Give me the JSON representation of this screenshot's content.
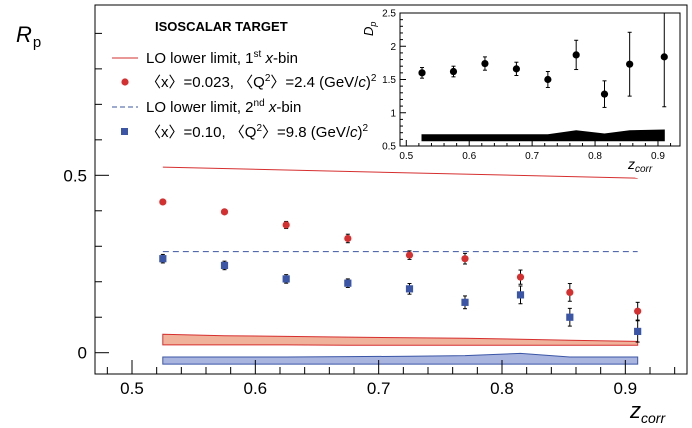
{
  "colors": {
    "red": "#d62f2f",
    "red_band": "#f0b29a",
    "blue": "#3b56a6",
    "blue_band": "#a9b4df",
    "black": "#000000"
  },
  "labels": {
    "y_title_main": "R",
    "y_title_sub": "p",
    "x_title_main": "z",
    "x_title_sub": "corr",
    "target": "ISOSCALAR TARGET",
    "leg1_pre": "LO lower limit, 1",
    "leg1_sup": "st",
    "leg1_it": " x",
    "leg1_post": "-bin",
    "leg2_a": "〈x〉=0.023, 〈Q",
    "leg2_sup1": "2",
    "leg2_b": "〉=2.4 (GeV/",
    "leg2_c": "c",
    "leg2_d": ")",
    "leg2_sup2": "2",
    "leg3_pre": "LO lower limit, 2",
    "leg3_sup": "nd",
    "leg3_it": " x",
    "leg3_post": "-bin",
    "leg4_a": "〈x〉=0.10, 〈Q",
    "leg4_sup1": "2",
    "leg4_b": "〉=9.8 (GeV/",
    "leg4_c": "c",
    "leg4_d": ")",
    "leg4_sup2": "2",
    "inset_y_main": "D",
    "inset_y_sub": "p",
    "inset_x_main": "z",
    "inset_x_sub": "corr"
  },
  "chart_data": [
    {
      "type": "scatter",
      "xlim": [
        0.47,
        0.95
      ],
      "ylim": [
        -0.06,
        0.98
      ],
      "xticks": [
        "0.5",
        "0.6",
        "0.7",
        "0.8",
        "0.9"
      ],
      "yticks": [
        "0",
        "0.5"
      ],
      "series": [
        {
          "name": "〈x〉=0.023, 〈Q2〉=2.4 (GeV/c)2",
          "x": [
            0.525,
            0.575,
            0.625,
            0.675,
            0.725,
            0.77,
            0.815,
            0.855,
            0.91
          ],
          "y": [
            0.425,
            0.397,
            0.36,
            0.322,
            0.275,
            0.265,
            0.213,
            0.17,
            0.117
          ],
          "err": [
            0.004,
            0.004,
            0.01,
            0.012,
            0.012,
            0.015,
            0.02,
            0.025,
            0.025
          ]
        },
        {
          "name": "〈x〉=0.10, 〈Q2〉=9.8 (GeV/c)2",
          "x": [
            0.525,
            0.575,
            0.625,
            0.675,
            0.725,
            0.77,
            0.815,
            0.855,
            0.91
          ],
          "y": [
            0.265,
            0.246,
            0.208,
            0.196,
            0.18,
            0.142,
            0.163,
            0.1,
            0.06
          ],
          "err": [
            0.012,
            0.012,
            0.012,
            0.012,
            0.015,
            0.018,
            0.025,
            0.025,
            0.03
          ]
        },
        {
          "name": "LO lower limit, 1st x-bin",
          "x": [
            0.525,
            0.91
          ],
          "y": [
            0.523,
            0.492
          ]
        },
        {
          "name": "LO lower limit, 2nd x-bin",
          "x": [
            0.525,
            0.91
          ],
          "y": [
            0.285,
            0.285
          ]
        }
      ],
      "bands": [
        {
          "x": [
            0.525,
            0.575,
            0.625,
            0.675,
            0.725,
            0.77,
            0.815,
            0.855,
            0.91
          ],
          "low": [
            0.022,
            0.022,
            0.022,
            0.021,
            0.021,
            0.021,
            0.021,
            0.021,
            0.021
          ],
          "high": [
            0.052,
            0.048,
            0.046,
            0.044,
            0.042,
            0.041,
            0.038,
            0.035,
            0.032
          ]
        },
        {
          "x": [
            0.525,
            0.575,
            0.625,
            0.675,
            0.725,
            0.77,
            0.815,
            0.855,
            0.91
          ],
          "low": [
            -0.032,
            -0.032,
            -0.032,
            -0.032,
            -0.032,
            -0.032,
            -0.032,
            -0.032,
            -0.032
          ],
          "high": [
            -0.012,
            -0.012,
            -0.012,
            -0.011,
            -0.01,
            -0.008,
            -0.002,
            -0.012,
            -0.012
          ]
        }
      ]
    },
    {
      "type": "scatter",
      "xlim": [
        0.49,
        0.935
      ],
      "ylim": [
        0.5,
        2.5
      ],
      "xticks": [
        "0.5",
        "0.6",
        "0.7",
        "0.8",
        "0.9"
      ],
      "yticks": [
        "0.5",
        "1",
        "1.5",
        "2",
        "2.5"
      ],
      "series": [
        {
          "x": [
            0.525,
            0.575,
            0.625,
            0.675,
            0.725,
            0.77,
            0.815,
            0.855,
            0.91
          ],
          "y": [
            1.6,
            1.62,
            1.74,
            1.66,
            1.5,
            1.87,
            1.28,
            1.73,
            1.84
          ],
          "err": [
            0.08,
            0.08,
            0.1,
            0.1,
            0.12,
            0.22,
            0.2,
            0.48,
            0.75
          ]
        }
      ],
      "bands": [
        {
          "x": [
            0.525,
            0.575,
            0.625,
            0.675,
            0.725,
            0.77,
            0.815,
            0.855,
            0.91
          ],
          "low": [
            0.58,
            0.58,
            0.58,
            0.58,
            0.58,
            0.58,
            0.58,
            0.58,
            0.58
          ],
          "high": [
            0.67,
            0.67,
            0.67,
            0.67,
            0.67,
            0.73,
            0.68,
            0.73,
            0.74
          ]
        }
      ]
    }
  ]
}
